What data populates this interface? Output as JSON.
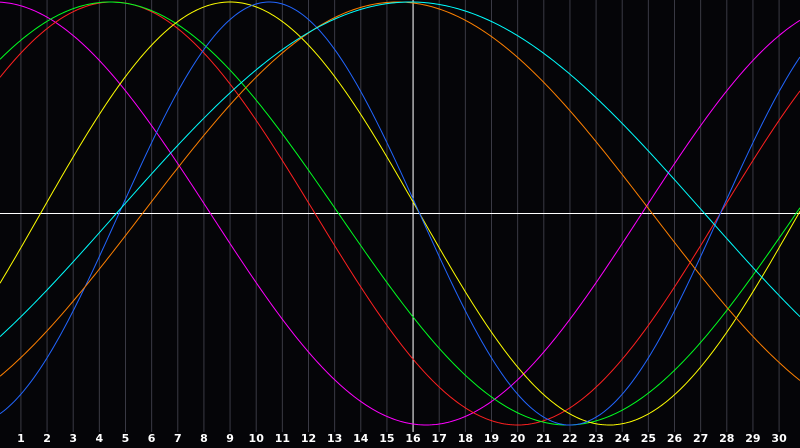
{
  "chart_data": {
    "type": "line",
    "title": "",
    "xlabel": "",
    "ylabel": "",
    "xlim": [
      0.2,
      30.8
    ],
    "ylim": [
      -1,
      1
    ],
    "grid": true,
    "legend": "none",
    "background": "#050508",
    "axis_color": "#ffffff",
    "grid_color": "#3a3a44",
    "x_ticks": [
      "1",
      "2",
      "3",
      "4",
      "5",
      "6",
      "7",
      "8",
      "9",
      "10",
      "11",
      "12",
      "13",
      "14",
      "15",
      "16",
      "17",
      "18",
      "19",
      "20",
      "21",
      "22",
      "23",
      "24",
      "25",
      "26",
      "27",
      "28",
      "29",
      "30"
    ],
    "x_marker": 16,
    "y_marker": 0,
    "series": [
      {
        "color": "#ff00ff",
        "period": 33,
        "peak_at": 0.0
      },
      {
        "color": "#ff2020",
        "period": 31,
        "peak_at": 4.5
      },
      {
        "color": "#00ff20",
        "period": 35,
        "peak_at": 4.4
      },
      {
        "color": "#ffff00",
        "period": 29,
        "peak_at": 9.0
      },
      {
        "color": "#2266ff",
        "period": 23,
        "peak_at": 10.5
      },
      {
        "color": "#ff8000",
        "period": 39,
        "peak_at": 15.4
      },
      {
        "color": "#00ffff",
        "period": 45,
        "peak_at": 15.9
      }
    ]
  }
}
